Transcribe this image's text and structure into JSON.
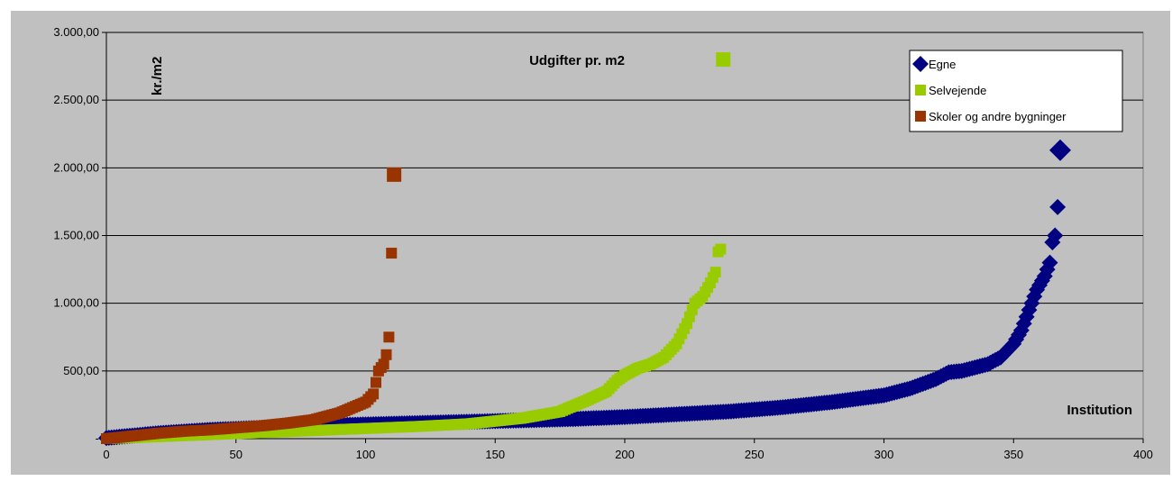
{
  "chart_data": {
    "type": "scatter",
    "title": "Udgifter pr. m2",
    "xlabel": "Institution",
    "ylabel": "kr./m2",
    "xlim": [
      0,
      400
    ],
    "ylim": [
      0,
      3000
    ],
    "xticks": [
      "0",
      "50",
      "100",
      "150",
      "200",
      "250",
      "300",
      "350",
      "400"
    ],
    "yticks": [
      "-",
      "500,00",
      "1.000,00",
      "1.500,00",
      "2.000,00",
      "2.500,00",
      "3.000,00"
    ],
    "grid": "horizontal",
    "legend_position": "top-right",
    "colors": {
      "plot_bg": "#c0c0c0",
      "frame": "#808080",
      "grid": "#000000"
    },
    "series": [
      {
        "name": "Egne",
        "marker": "diamond",
        "color": "#000080",
        "x": [
          0,
          20,
          40,
          60,
          80,
          100,
          120,
          140,
          160,
          180,
          200,
          220,
          240,
          260,
          280,
          300,
          310,
          320,
          325,
          330,
          340,
          345,
          350,
          353,
          356,
          359,
          362,
          364,
          365,
          366,
          367,
          368
        ],
        "y": [
          5,
          40,
          65,
          80,
          95,
          105,
          115,
          125,
          135,
          145,
          160,
          180,
          200,
          230,
          270,
          320,
          370,
          440,
          490,
          500,
          550,
          600,
          700,
          800,
          950,
          1100,
          1200,
          1300,
          1450,
          1500,
          1710,
          2130
        ]
      },
      {
        "name": "Selvejende",
        "marker": "square",
        "color": "#99cc00",
        "x": [
          0,
          20,
          40,
          60,
          80,
          100,
          120,
          140,
          160,
          175,
          185,
          193,
          197,
          200,
          205,
          210,
          215,
          220,
          224,
          227,
          230,
          233,
          235,
          236,
          237,
          238
        ],
        "y": [
          0,
          15,
          30,
          45,
          60,
          75,
          90,
          110,
          150,
          200,
          280,
          350,
          430,
          470,
          520,
          550,
          600,
          700,
          850,
          1000,
          1050,
          1150,
          1230,
          1380,
          1400,
          2800
        ]
      },
      {
        "name": "Skoler og andre bygninger",
        "marker": "square",
        "color": "#993300",
        "x": [
          0,
          10,
          20,
          30,
          40,
          50,
          60,
          70,
          80,
          90,
          95,
          100,
          103,
          105,
          107,
          108,
          109,
          110,
          111
        ],
        "y": [
          0,
          20,
          40,
          55,
          65,
          80,
          95,
          115,
          140,
          190,
          230,
          270,
          330,
          500,
          550,
          620,
          750,
          1370,
          1950
        ]
      }
    ]
  }
}
